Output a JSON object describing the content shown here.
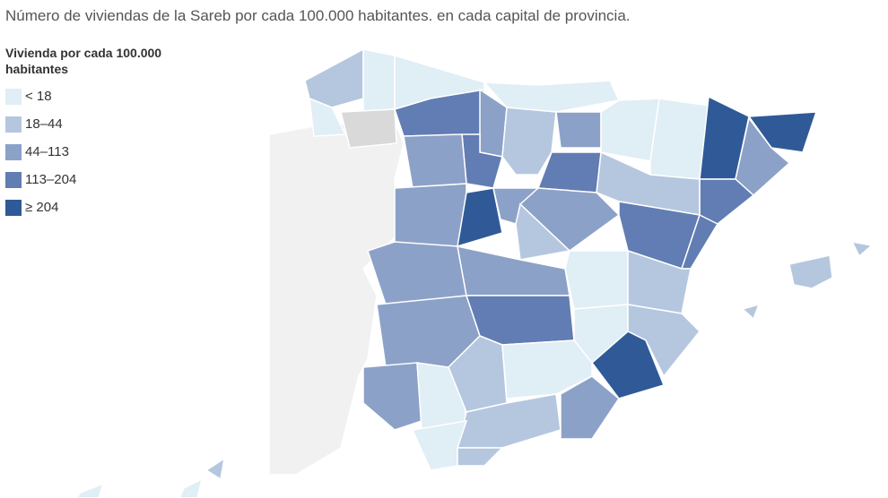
{
  "title": "Número de viviendas de la Sareb por cada 100.000 habitantes. en cada capital de provincia.",
  "legend": {
    "title": "Vivienda por cada 100.000 habitantes",
    "items": [
      {
        "label": "< 18",
        "color": "#e0eef5"
      },
      {
        "label": "18–44",
        "color": "#b5c7df"
      },
      {
        "label": "44–113",
        "color": "#8ca1c7"
      },
      {
        "label": "113–204",
        "color": "#617db3"
      },
      {
        "label": "≥ 204",
        "color": "#2f5a97"
      }
    ]
  }
}
